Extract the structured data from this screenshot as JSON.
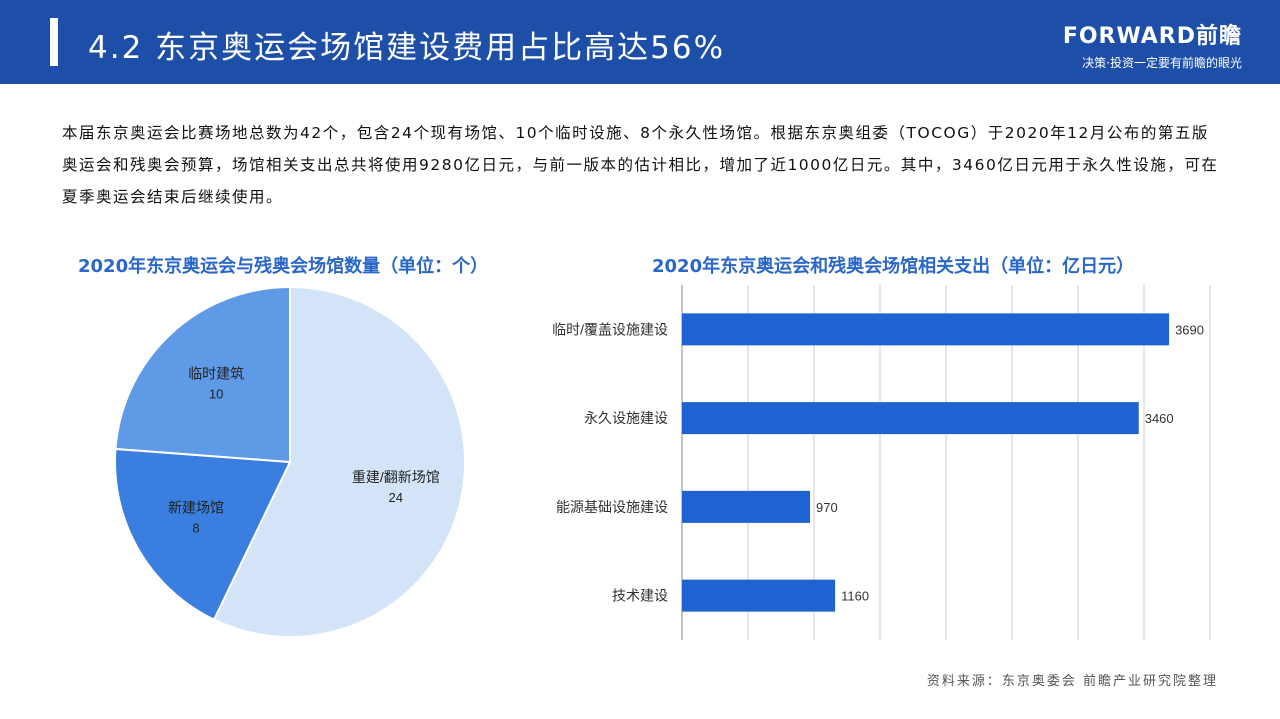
{
  "header": {
    "title": "4.2 东京奥运会场馆建设费用占比高达56%",
    "brand_name": "FORWARD前瞻",
    "brand_slogan": "决策·投资一定要有前瞻的眼光",
    "bg_color": "#1e4fa8"
  },
  "intro_text": "本届东京奥运会比赛场地总数为42个，包含24个现有场馆、10个临时设施、8个永久性场馆。根据东京奥组委（TOCOG）于2020年12月公布的第五版奥运会和残奥会预算，场馆相关支出总共将使用9280亿日元，与前一版本的估计相比，增加了近1000亿日元。其中，3460亿日元用于永久性设施，可在夏季奥运会结束后继续使用。",
  "source_note": "资料来源：东京奥委会 前瞻产业研究院整理",
  "chart_data": [
    {
      "type": "pie",
      "title": "2020年东京奥运会与残奥会场馆数量（单位：个）",
      "labels": [
        "重建/翻新场馆",
        "新建场馆",
        "临时建筑"
      ],
      "values": [
        24,
        8,
        10
      ],
      "colors": [
        "#d3e3f8",
        "#3a7fe0",
        "#5f9ae6"
      ]
    },
    {
      "type": "bar",
      "orientation": "horizontal",
      "title": "2020年东京奥运会和残奥会场馆相关支出（单位：亿日元）",
      "categories": [
        "临时/覆盖设施建设",
        "永久设施建设",
        "能源基础设施建设",
        "技术建设"
      ],
      "values": [
        3690,
        3460,
        970,
        1160
      ],
      "xlim": [
        0,
        4000
      ],
      "grid": true,
      "bar_color": "#1f62d1"
    }
  ]
}
